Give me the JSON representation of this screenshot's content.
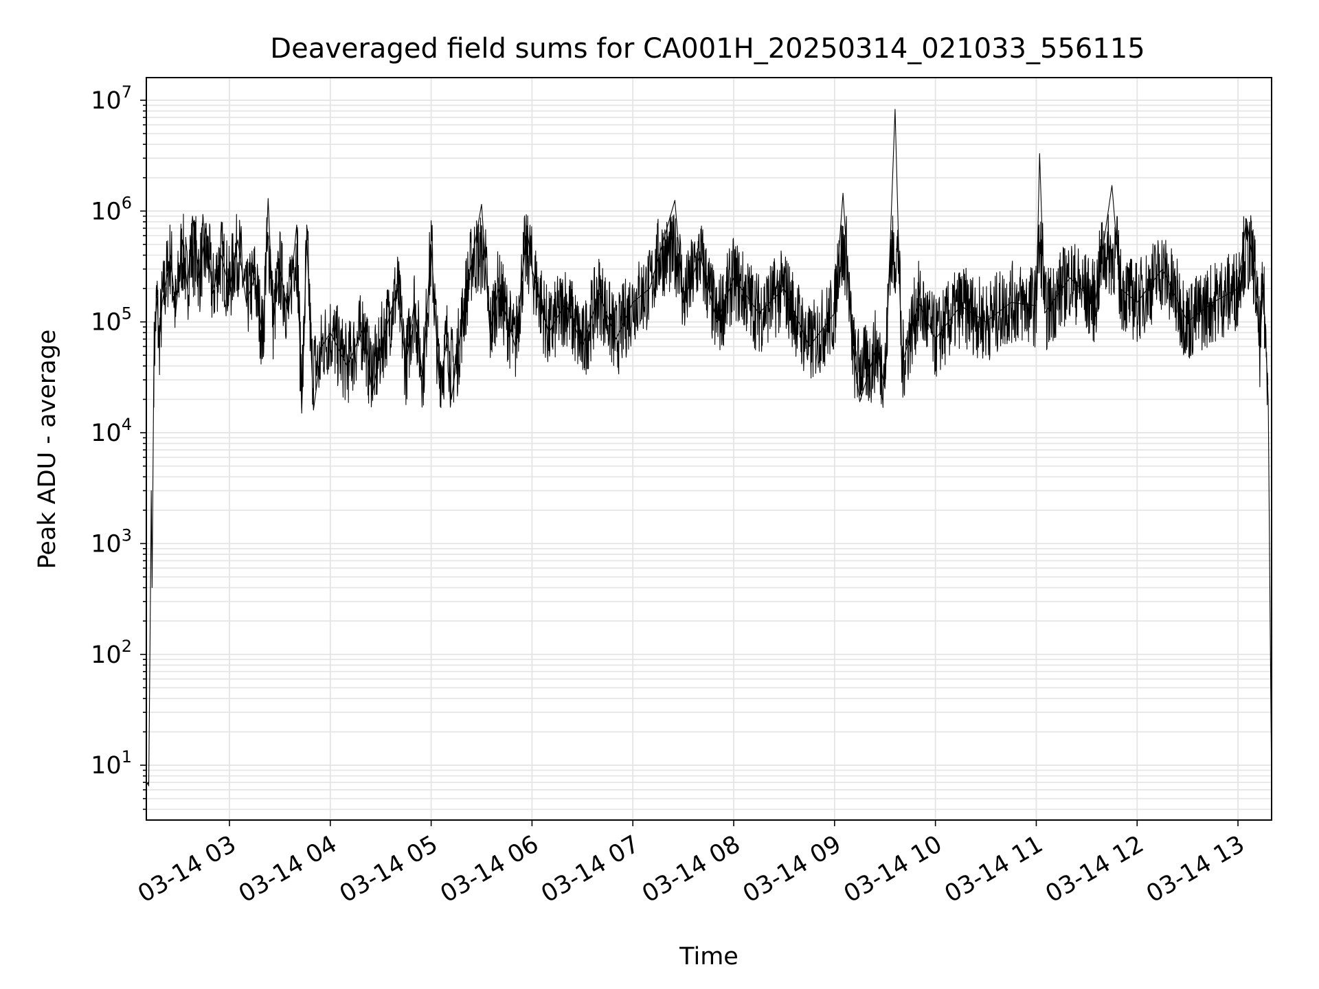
{
  "chart_data": {
    "type": "line",
    "title": "Deaveraged field sums for CA001H_20250314_021033_556115",
    "xlabel": "Time",
    "ylabel": "Peak ADU - average",
    "yscale": "log",
    "xlim": [
      "2025-03-14T02:10:33",
      "2025-03-14T13:20:00"
    ],
    "ylim": [
      3.2,
      16000000
    ],
    "grid": "on",
    "x_ticks": [
      {
        "value": "2025-03-14T03:00:00",
        "label": "03-14 03"
      },
      {
        "value": "2025-03-14T04:00:00",
        "label": "03-14 04"
      },
      {
        "value": "2025-03-14T05:00:00",
        "label": "03-14 05"
      },
      {
        "value": "2025-03-14T06:00:00",
        "label": "03-14 06"
      },
      {
        "value": "2025-03-14T07:00:00",
        "label": "03-14 07"
      },
      {
        "value": "2025-03-14T08:00:00",
        "label": "03-14 08"
      },
      {
        "value": "2025-03-14T09:00:00",
        "label": "03-14 09"
      },
      {
        "value": "2025-03-14T10:00:00",
        "label": "03-14 10"
      },
      {
        "value": "2025-03-14T11:00:00",
        "label": "03-14 11"
      },
      {
        "value": "2025-03-14T12:00:00",
        "label": "03-14 12"
      },
      {
        "value": "2025-03-14T13:00:00",
        "label": "03-14 13"
      }
    ],
    "y_ticks": [
      {
        "value": 10,
        "base": "10",
        "exp": "1"
      },
      {
        "value": 100,
        "base": "10",
        "exp": "2"
      },
      {
        "value": 1000,
        "base": "10",
        "exp": "3"
      },
      {
        "value": 10000,
        "base": "10",
        "exp": "4"
      },
      {
        "value": 100000,
        "base": "10",
        "exp": "5"
      },
      {
        "value": 1000000,
        "base": "10",
        "exp": "6"
      },
      {
        "value": 10000000,
        "base": "10",
        "exp": "7"
      }
    ],
    "series": [
      {
        "color": "#000000",
        "points": [
          [
            "2025-03-14T02:10:33",
            6.5
          ],
          [
            "2025-03-14T02:11:30",
            7
          ],
          [
            "2025-03-14T02:12:00",
            6.5
          ],
          [
            "2025-03-14T02:13:00",
            350
          ],
          [
            "2025-03-14T02:13:30",
            3000
          ],
          [
            "2025-03-14T02:14:00",
            400
          ],
          [
            "2025-03-14T02:15:00",
            40000
          ],
          [
            "2025-03-14T02:16:00",
            100000
          ],
          [
            "2025-03-14T02:17:00",
            170000
          ],
          [
            "2025-03-14T02:18:00",
            60000
          ],
          [
            "2025-03-14T02:20:00",
            150000
          ],
          [
            "2025-03-14T02:25:00",
            400000
          ],
          [
            "2025-03-14T02:28:00",
            120000
          ],
          [
            "2025-03-14T02:32:00",
            550000
          ],
          [
            "2025-03-14T02:35:00",
            200000
          ],
          [
            "2025-03-14T02:38:00",
            900000
          ],
          [
            "2025-03-14T02:42:00",
            250000
          ],
          [
            "2025-03-14T02:46:00",
            700000
          ],
          [
            "2025-03-14T02:50:00",
            180000
          ],
          [
            "2025-03-14T02:55:00",
            400000
          ],
          [
            "2025-03-14T03:00:00",
            200000
          ],
          [
            "2025-03-14T03:05:00",
            550000
          ],
          [
            "2025-03-14T03:10:00",
            150000
          ],
          [
            "2025-03-14T03:15:00",
            250000
          ],
          [
            "2025-03-14T03:20:00",
            70000
          ],
          [
            "2025-03-14T03:23:00",
            1300000
          ],
          [
            "2025-03-14T03:26:00",
            100000
          ],
          [
            "2025-03-14T03:30:00",
            300000
          ],
          [
            "2025-03-14T03:35:00",
            120000
          ],
          [
            "2025-03-14T03:40:00",
            750000
          ],
          [
            "2025-03-14T03:43:00",
            15000
          ],
          [
            "2025-03-14T03:46:00",
            600000
          ],
          [
            "2025-03-14T03:50:00",
            16000
          ],
          [
            "2025-03-14T03:55:00",
            60000
          ],
          [
            "2025-03-14T04:00:00",
            80000
          ],
          [
            "2025-03-14T04:10:00",
            40000
          ],
          [
            "2025-03-14T04:20:00",
            90000
          ],
          [
            "2025-03-14T04:25:00",
            22000
          ],
          [
            "2025-03-14T04:30:00",
            60000
          ],
          [
            "2025-03-14T04:40:00",
            200000
          ],
          [
            "2025-03-14T04:45:00",
            40000
          ],
          [
            "2025-03-14T04:50:00",
            150000
          ],
          [
            "2025-03-14T04:55:00",
            30000
          ],
          [
            "2025-03-14T05:00:00",
            500000
          ],
          [
            "2025-03-14T05:05:00",
            25000
          ],
          [
            "2025-03-14T05:10:00",
            80000
          ],
          [
            "2025-03-14T05:12:00",
            20000
          ],
          [
            "2025-03-14T05:20:00",
            150000
          ],
          [
            "2025-03-14T05:30:00",
            1150000
          ],
          [
            "2025-03-14T05:35:00",
            80000
          ],
          [
            "2025-03-14T05:40:00",
            200000
          ],
          [
            "2025-03-14T05:50:00",
            60000
          ],
          [
            "2025-03-14T05:57:00",
            700000
          ],
          [
            "2025-03-14T06:00:00",
            300000
          ],
          [
            "2025-03-14T06:10:00",
            80000
          ],
          [
            "2025-03-14T06:20:00",
            150000
          ],
          [
            "2025-03-14T06:30:00",
            60000
          ],
          [
            "2025-03-14T06:40:00",
            180000
          ],
          [
            "2025-03-14T06:50:00",
            70000
          ],
          [
            "2025-03-14T07:00:00",
            150000
          ],
          [
            "2025-03-14T07:10:00",
            200000
          ],
          [
            "2025-03-14T07:25:00",
            1250000
          ],
          [
            "2025-03-14T07:30:00",
            150000
          ],
          [
            "2025-03-14T07:40:00",
            400000
          ],
          [
            "2025-03-14T07:50:00",
            100000
          ],
          [
            "2025-03-14T08:00:00",
            250000
          ],
          [
            "2025-03-14T08:15:00",
            120000
          ],
          [
            "2025-03-14T08:30:00",
            200000
          ],
          [
            "2025-03-14T08:45:00",
            60000
          ],
          [
            "2025-03-14T09:00:00",
            120000
          ],
          [
            "2025-03-14T09:05:00",
            1450000
          ],
          [
            "2025-03-14T09:10:00",
            80000
          ],
          [
            "2025-03-14T09:15:00",
            19000
          ],
          [
            "2025-03-14T09:25:00",
            60000
          ],
          [
            "2025-03-14T09:30:00",
            25000
          ],
          [
            "2025-03-14T09:36:00",
            8300000
          ],
          [
            "2025-03-14T09:40:00",
            40000
          ],
          [
            "2025-03-14T09:50:00",
            150000
          ],
          [
            "2025-03-14T10:00:00",
            70000
          ],
          [
            "2025-03-14T10:15:00",
            140000
          ],
          [
            "2025-03-14T10:30:00",
            100000
          ],
          [
            "2025-03-14T10:45:00",
            150000
          ],
          [
            "2025-03-14T11:00:00",
            140000
          ],
          [
            "2025-03-14T11:02:00",
            3300000
          ],
          [
            "2025-03-14T11:05:00",
            120000
          ],
          [
            "2025-03-14T11:20:00",
            250000
          ],
          [
            "2025-03-14T11:35:00",
            150000
          ],
          [
            "2025-03-14T11:45:00",
            1700000
          ],
          [
            "2025-03-14T11:50:00",
            200000
          ],
          [
            "2025-03-14T12:00:00",
            150000
          ],
          [
            "2025-03-14T12:15:00",
            300000
          ],
          [
            "2025-03-14T12:30:00",
            100000
          ],
          [
            "2025-03-14T12:45:00",
            150000
          ],
          [
            "2025-03-14T13:00:00",
            200000
          ],
          [
            "2025-03-14T13:05:00",
            850000
          ],
          [
            "2025-03-14T13:10:00",
            280000
          ],
          [
            "2025-03-14T13:13:00",
            60000
          ],
          [
            "2025-03-14T13:15:00",
            220000
          ],
          [
            "2025-03-14T13:18:00",
            20000
          ],
          [
            "2025-03-14T13:20:00",
            6
          ]
        ]
      }
    ]
  }
}
